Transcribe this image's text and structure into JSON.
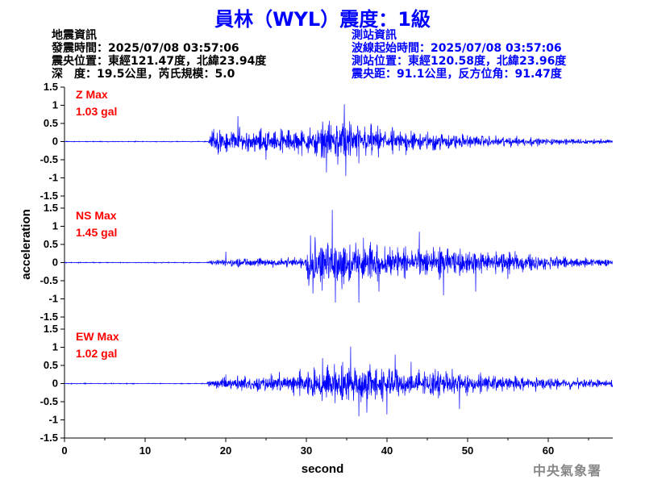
{
  "header": {
    "title": "員林（WYL）震度：1級"
  },
  "info_left": {
    "heading": "地震資訊",
    "time": "發震時間：2025/07/08 03:57:06",
    "location": "震央位置：東經121.47度，北緯23.94度",
    "depth": "深　度：19.5公里，芮氏規模：5.0"
  },
  "info_right": {
    "heading": "測站資訊",
    "start": "波線起始時間：2025/07/08 03:57:06",
    "location": "測站位置：東經120.58度，北緯23.96度",
    "distance": "震央距：91.1公里，反方位角：91.47度"
  },
  "footer": {
    "agency": "中央氣象署"
  },
  "colors": {
    "trace": "#0000ff",
    "max_label": "#ff0000",
    "title": "#0000ff"
  },
  "chart_data": {
    "type": "line",
    "xlabel": "second",
    "ylabel": "acceleration",
    "xlim": [
      0,
      68
    ],
    "x_ticks": [
      0,
      10,
      20,
      30,
      40,
      50,
      60
    ],
    "y_ticks": [
      -1.5,
      -1,
      -0.5,
      0,
      0.5,
      1,
      1.5
    ],
    "ylim": [
      -1.5,
      1.5
    ],
    "panels": [
      {
        "name": "Z",
        "max_label": "Z Max",
        "max_value": "1.03 gal",
        "envelope": [
          [
            0,
            0.01
          ],
          [
            17.8,
            0.01
          ],
          [
            18.2,
            0.25
          ],
          [
            19,
            0.3
          ],
          [
            21,
            0.32
          ],
          [
            23,
            0.3
          ],
          [
            26,
            0.28
          ],
          [
            30,
            0.3
          ],
          [
            32,
            0.45
          ],
          [
            33,
            0.5
          ],
          [
            35,
            0.55
          ],
          [
            37,
            0.42
          ],
          [
            40,
            0.32
          ],
          [
            44,
            0.24
          ],
          [
            48,
            0.2
          ],
          [
            52,
            0.15
          ],
          [
            56,
            0.12
          ],
          [
            60,
            0.09
          ],
          [
            64,
            0.07
          ],
          [
            68,
            0.06
          ]
        ],
        "peaks": [
          {
            "x": 18.5,
            "y": 0.35
          },
          {
            "x": 21.5,
            "y": 0.7
          },
          {
            "x": 25,
            "y": -0.5
          },
          {
            "x": 29,
            "y": -0.35
          },
          {
            "x": 32,
            "y": 0.55
          },
          {
            "x": 32.5,
            "y": -0.85
          },
          {
            "x": 34.7,
            "y": 1.03
          },
          {
            "x": 34.9,
            "y": -0.95
          },
          {
            "x": 36.5,
            "y": -0.6
          },
          {
            "x": 38,
            "y": 0.5
          },
          {
            "x": 43,
            "y": 0.3
          }
        ]
      },
      {
        "name": "NS",
        "max_label": "NS Max",
        "max_value": "1.45 gal",
        "envelope": [
          [
            0,
            0.01
          ],
          [
            17.5,
            0.01
          ],
          [
            18,
            0.04
          ],
          [
            19,
            0.08
          ],
          [
            21,
            0.1
          ],
          [
            24,
            0.12
          ],
          [
            27,
            0.13
          ],
          [
            29.8,
            0.12
          ],
          [
            30.2,
            0.55
          ],
          [
            32,
            0.6
          ],
          [
            34,
            0.65
          ],
          [
            36,
            0.55
          ],
          [
            38,
            0.5
          ],
          [
            41,
            0.45
          ],
          [
            44,
            0.4
          ],
          [
            48,
            0.35
          ],
          [
            52,
            0.3
          ],
          [
            56,
            0.25
          ],
          [
            60,
            0.18
          ],
          [
            64,
            0.12
          ],
          [
            68,
            0.09
          ]
        ],
        "peaks": [
          {
            "x": 20,
            "y": 0.3
          },
          {
            "x": 30.5,
            "y": 0.75
          },
          {
            "x": 30.8,
            "y": -0.85
          },
          {
            "x": 33.2,
            "y": 1.45
          },
          {
            "x": 33.6,
            "y": -1.1
          },
          {
            "x": 36.5,
            "y": -1.1
          },
          {
            "x": 39,
            "y": -0.8
          },
          {
            "x": 44,
            "y": 0.85
          },
          {
            "x": 47,
            "y": -0.9
          },
          {
            "x": 51,
            "y": -0.8
          },
          {
            "x": 55,
            "y": -0.45
          }
        ]
      },
      {
        "name": "EW",
        "max_label": "EW Max",
        "max_value": "1.02 gal",
        "envelope": [
          [
            0,
            0.01
          ],
          [
            17.5,
            0.01
          ],
          [
            18,
            0.1
          ],
          [
            19,
            0.13
          ],
          [
            21,
            0.18
          ],
          [
            23,
            0.2
          ],
          [
            26,
            0.22
          ],
          [
            29,
            0.28
          ],
          [
            31,
            0.4
          ],
          [
            33,
            0.45
          ],
          [
            35,
            0.55
          ],
          [
            37,
            0.5
          ],
          [
            40,
            0.42
          ],
          [
            43,
            0.35
          ],
          [
            47,
            0.3
          ],
          [
            51,
            0.25
          ],
          [
            55,
            0.2
          ],
          [
            59,
            0.16
          ],
          [
            63,
            0.13
          ],
          [
            68,
            0.1
          ]
        ],
        "peaks": [
          {
            "x": 20,
            "y": 0.25
          },
          {
            "x": 22,
            "y": -0.2
          },
          {
            "x": 32,
            "y": 0.7
          },
          {
            "x": 35.5,
            "y": 1.02
          },
          {
            "x": 36.5,
            "y": -0.9
          },
          {
            "x": 37.5,
            "y": -0.8
          },
          {
            "x": 40,
            "y": -0.85
          },
          {
            "x": 41,
            "y": 0.8
          },
          {
            "x": 43,
            "y": 0.6
          },
          {
            "x": 46,
            "y": 0.4
          },
          {
            "x": 49,
            "y": -0.7
          }
        ]
      }
    ]
  }
}
